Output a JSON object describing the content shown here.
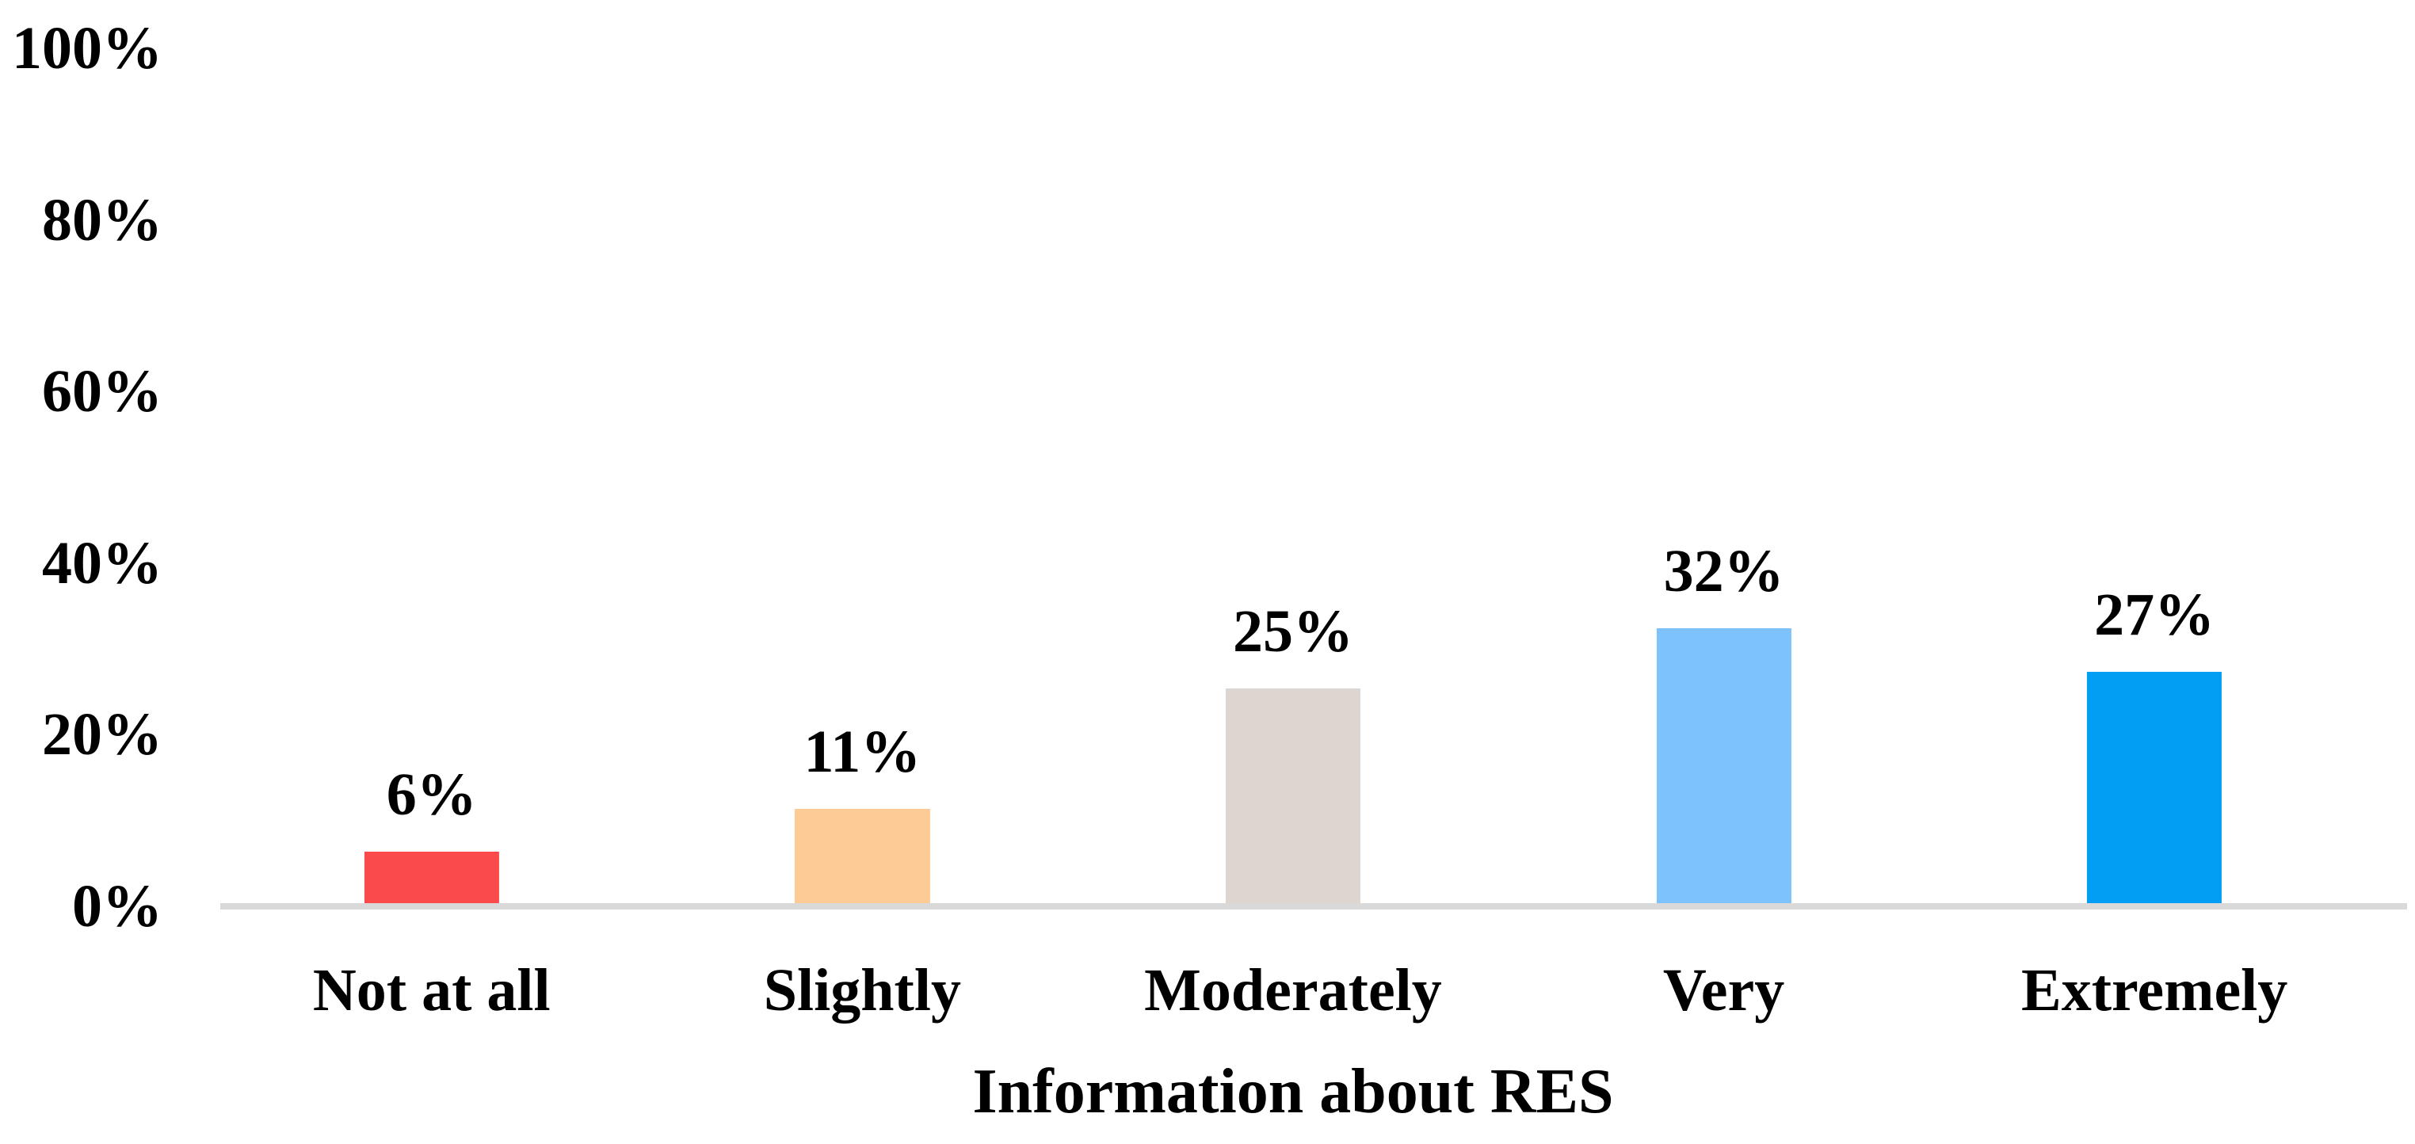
{
  "chart_data": {
    "type": "bar",
    "title": "",
    "xlabel": "Information about RES",
    "ylabel": "",
    "categories": [
      "Not at all",
      "Slightly",
      "Moderately",
      "Very",
      "Extremely"
    ],
    "values": [
      6,
      11,
      25,
      32,
      27
    ],
    "data_labels": [
      "6%",
      "11%",
      "25%",
      "32%",
      "27%"
    ],
    "bar_colors": [
      "#FB4A4C",
      "#FDCC96",
      "#DDD6D0",
      "#7DC2FA",
      "#029EF3"
    ],
    "y_ticks": [
      {
        "label": "0%",
        "value": 0
      },
      {
        "label": "20%",
        "value": 20
      },
      {
        "label": "40%",
        "value": 40
      },
      {
        "label": "60%",
        "value": 60
      },
      {
        "label": "80%",
        "value": 80
      },
      {
        "label": "100%",
        "value": 100
      }
    ],
    "ylim": [
      0,
      100
    ],
    "grid": false,
    "legend": false,
    "axis_line_color": "#D9D9D9",
    "text_color": "#000000",
    "background": "#FFFFFF"
  }
}
